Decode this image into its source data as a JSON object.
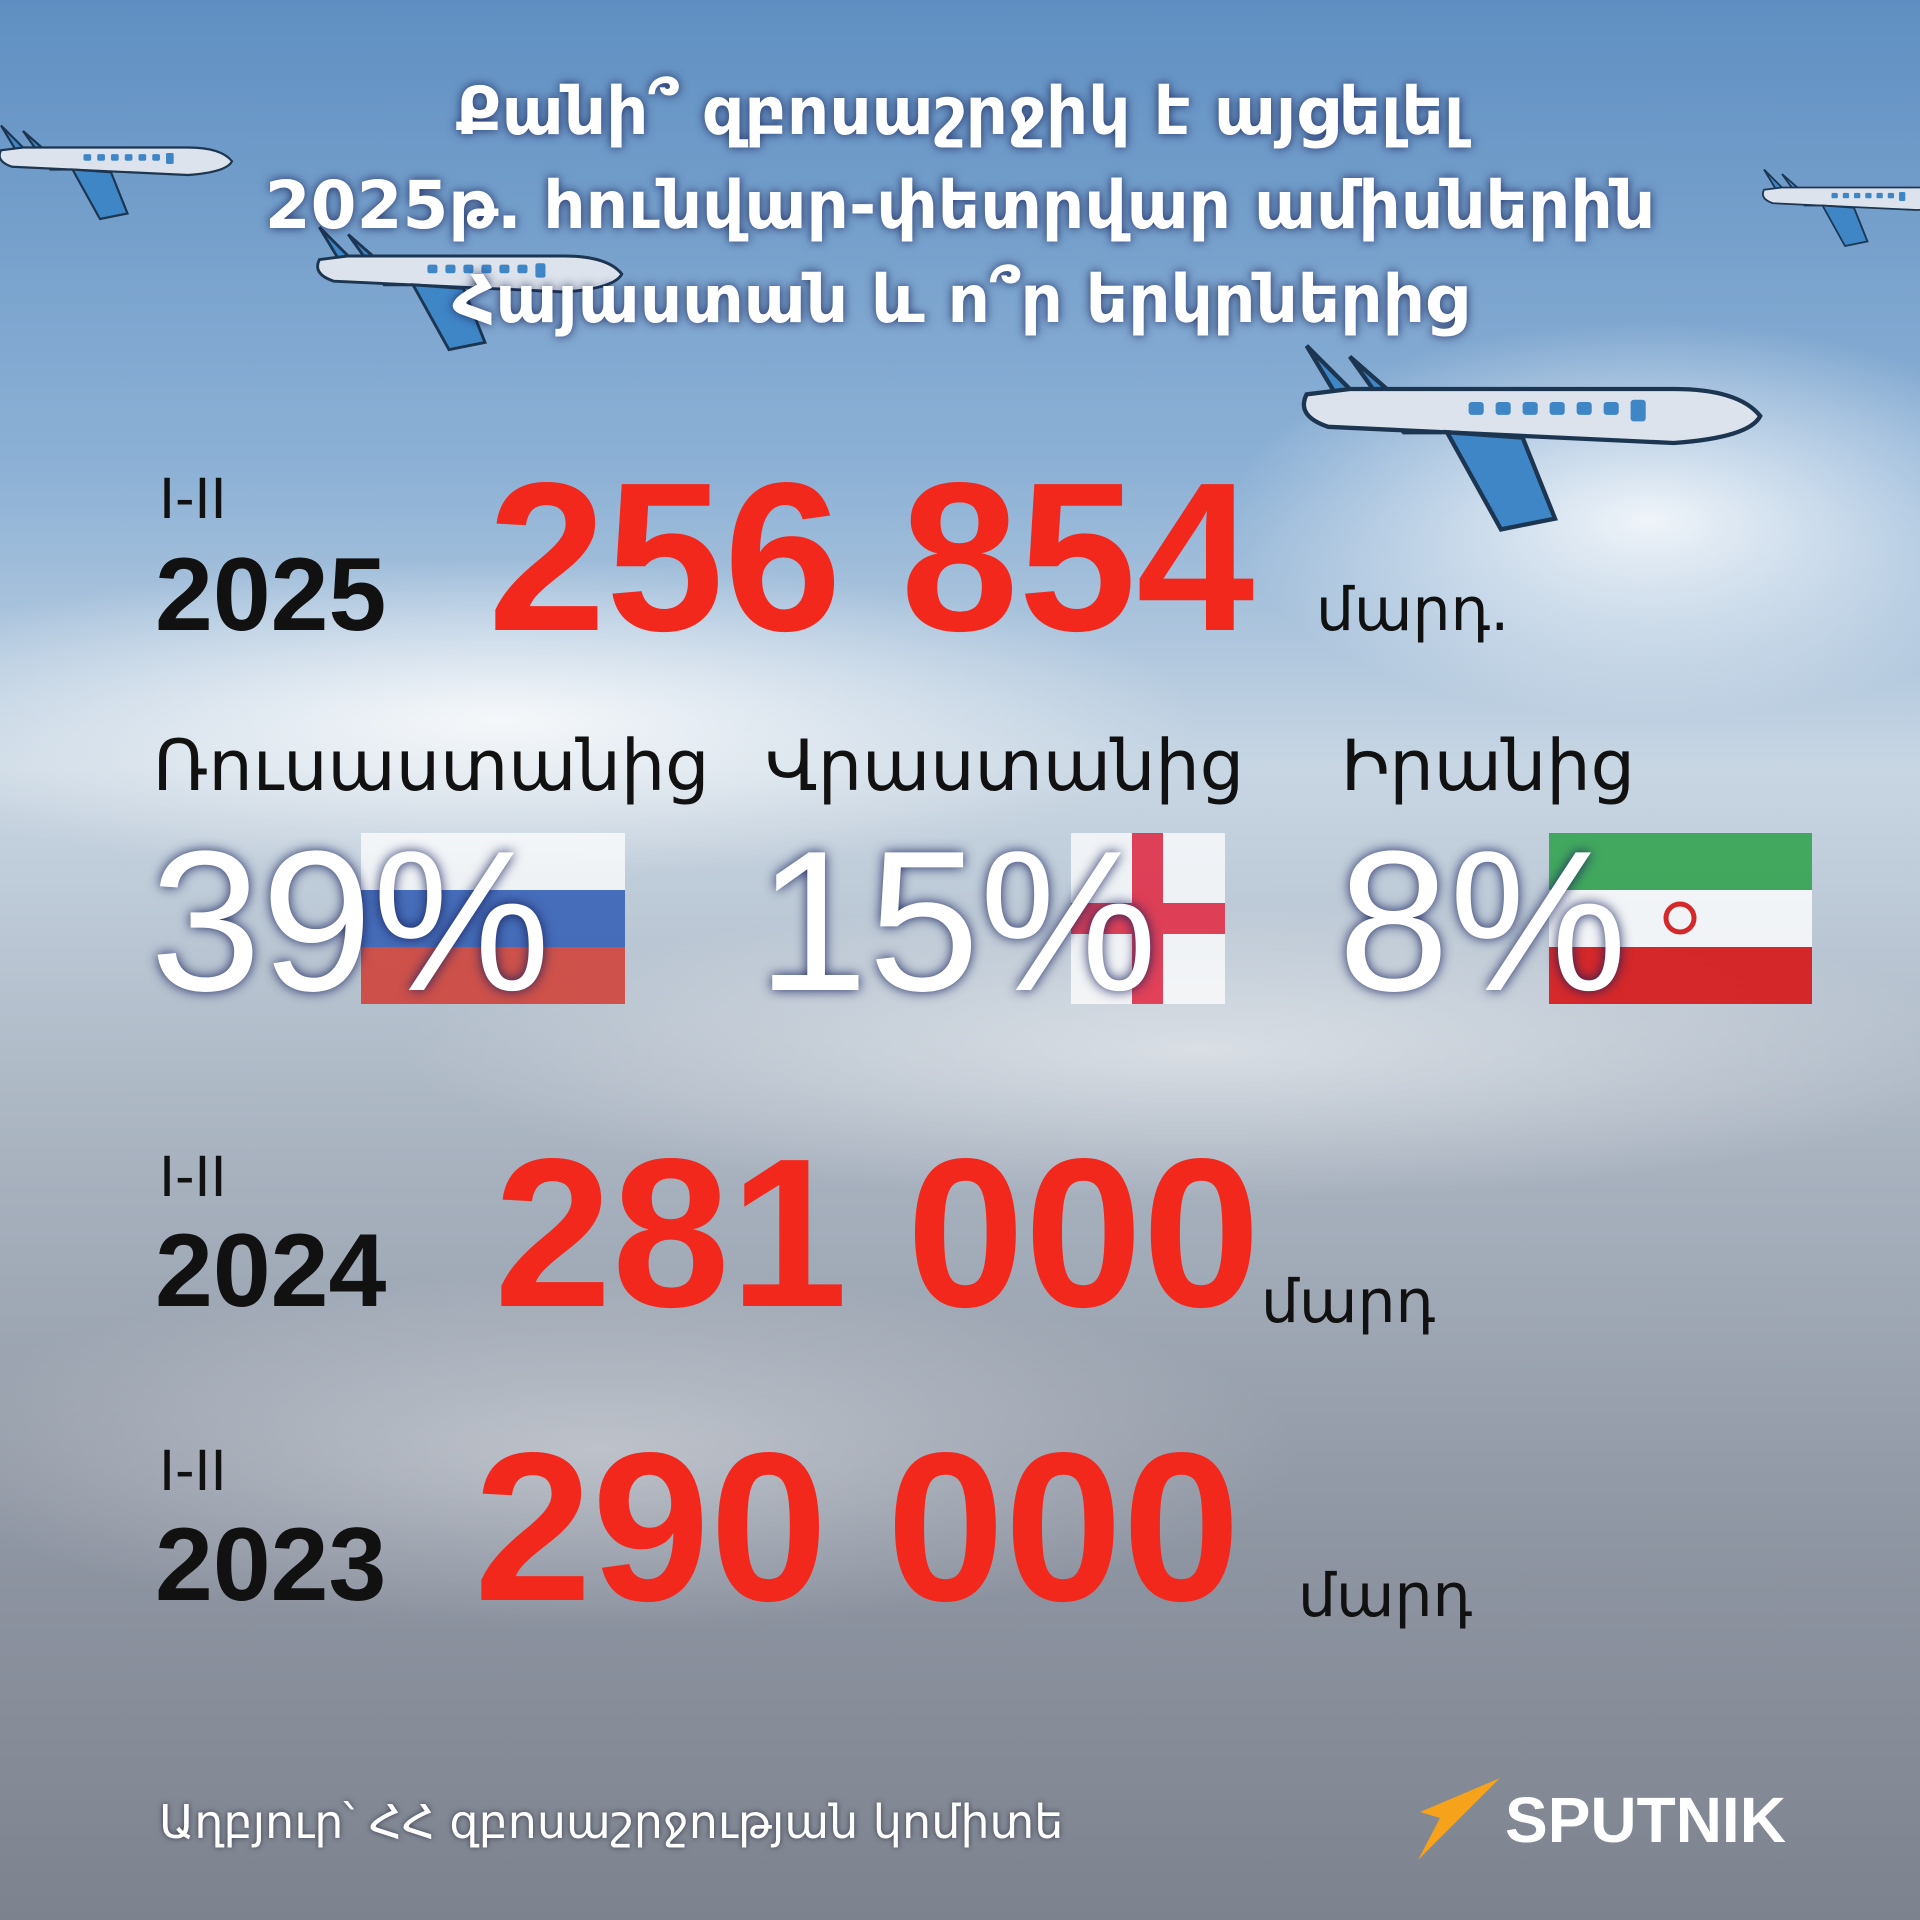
{
  "header": {
    "title_lines": [
      "Քանի՞ զբոսաշրջիկ է այցելել",
      "2025թ․ հունվար-փետրվար ամիսներին",
      "Հայաստան և ո՞ր երկրներից"
    ]
  },
  "current": {
    "period": "I-II",
    "year": "2025",
    "value": "256 854",
    "unit": "մարդ."
  },
  "countries": [
    {
      "name": "Ռուսաստանից",
      "share": "39%"
    },
    {
      "name": "Վրաստանից",
      "share": "15%"
    },
    {
      "name": "Իրանից",
      "share": "8%"
    }
  ],
  "previous": [
    {
      "period": "I-II",
      "year": "2024",
      "value": "281 000",
      "unit": "մարդ"
    },
    {
      "period": "I-II",
      "year": "2023",
      "value": "290 000",
      "unit": "մարդ"
    }
  ],
  "footer": {
    "source": "Աղբյուր՝ ՀՀ զբոսաշրջության կոմիտե",
    "brand": "SPUTNIK"
  }
}
